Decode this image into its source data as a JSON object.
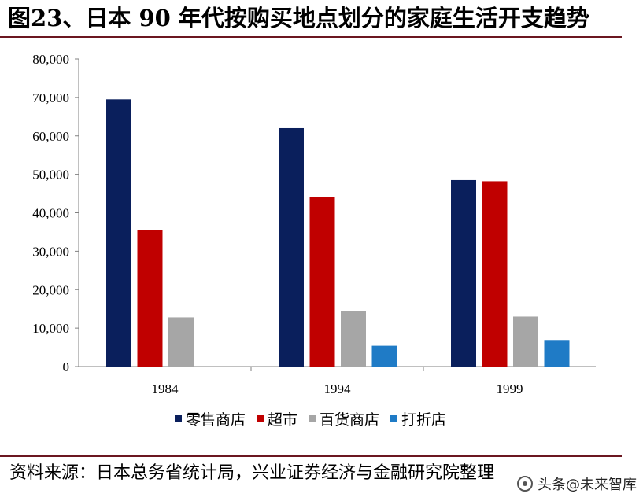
{
  "title": "图23、日本 90 年代按购买地点划分的家庭生活开支趋势",
  "source": "资料来源：日本总务省统计局，兴业证券经济与金融研究院整理",
  "watermark": "头条@未来智库",
  "chart_data": {
    "type": "bar",
    "categories": [
      "1984",
      "1994",
      "1999"
    ],
    "series": [
      {
        "name": "零售商店",
        "color": "#0a1f5c",
        "values": [
          69500,
          62000,
          48500
        ]
      },
      {
        "name": "超市",
        "color": "#c00000",
        "values": [
          35500,
          44000,
          48200
        ]
      },
      {
        "name": "百货商店",
        "color": "#a6a6a6",
        "values": [
          12800,
          14500,
          13000
        ]
      },
      {
        "name": "打折店",
        "color": "#1f7bc6",
        "values": [
          null,
          5400,
          6900
        ]
      }
    ],
    "ylim": [
      0,
      80000
    ],
    "yticks": [
      0,
      10000,
      20000,
      30000,
      40000,
      50000,
      60000,
      70000,
      80000
    ],
    "ytick_labels": [
      "0",
      "10,000",
      "20,000",
      "30,000",
      "40,000",
      "50,000",
      "60,000",
      "70,000",
      "80,000"
    ],
    "grid": false,
    "legend_position": "bottom"
  }
}
